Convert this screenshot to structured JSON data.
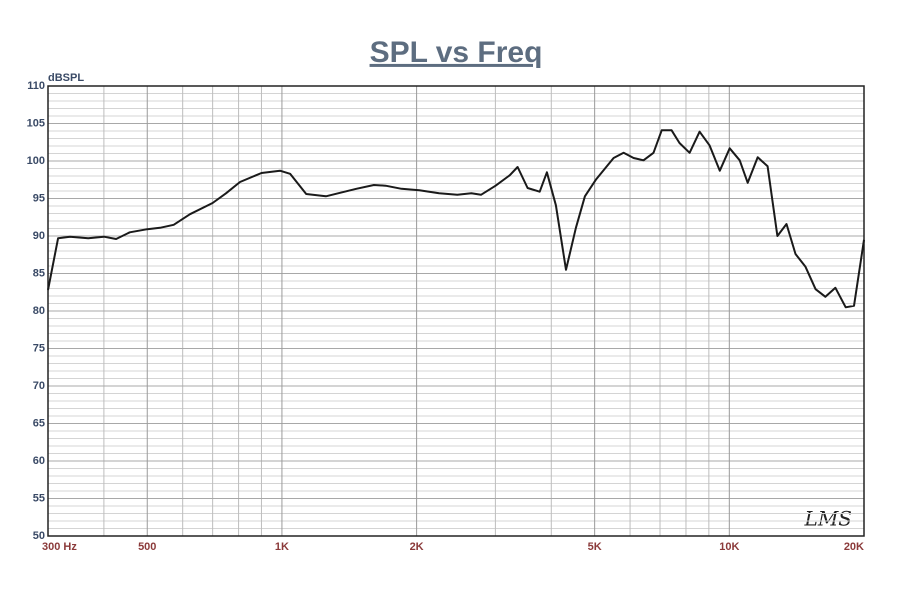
{
  "chart_data": {
    "type": "line",
    "title": "SPL vs Freq",
    "y_label": "dBSPL",
    "watermark": "LMS",
    "log_x": true,
    "grid": true,
    "xlim": [
      300,
      20000
    ],
    "ylim": [
      50,
      110
    ],
    "xticks": [
      {
        "value": 300,
        "label": "300  Hz"
      },
      500,
      {
        "value": 1000,
        "label": "1K"
      },
      {
        "value": 2000,
        "label": "2K"
      },
      {
        "value": 5000,
        "label": "5K"
      },
      {
        "value": 10000,
        "label": "10K"
      },
      {
        "value": 20000,
        "label": "20K"
      }
    ],
    "xminor": [
      400,
      600,
      700,
      800,
      900,
      3000,
      4000,
      6000,
      7000,
      8000,
      9000
    ],
    "yticks": [
      50,
      55,
      60,
      65,
      70,
      75,
      80,
      85,
      90,
      95,
      100,
      105,
      110
    ],
    "x": [
      300,
      316,
      336,
      369,
      400,
      426,
      457,
      500,
      534,
      573,
      623,
      700,
      750,
      806,
      900,
      990,
      1043,
      1133,
      1254,
      1466,
      1605,
      1705,
      1850,
      2028,
      2245,
      2466,
      2652,
      2786,
      3003,
      3230,
      3364,
      3540,
      3768,
      3911,
      4097,
      4314,
      4540,
      4755,
      5030,
      5513,
      5805,
      6110,
      6430,
      6770,
      7060,
      7430,
      7740,
      8150,
      8580,
      9030,
      9520,
      10020,
      10550,
      10990,
      11570,
      12180,
      12810,
      13420,
      14060,
      14800,
      15590,
      16400,
      17260,
      18200,
      19000,
      20000
    ],
    "series": [
      {
        "color": "#1a1a1a",
        "values": [
          82.8,
          89.7,
          89.9,
          89.7,
          89.9,
          89.6,
          90.5,
          90.9,
          91.1,
          91.5,
          92.9,
          94.4,
          95.7,
          97.2,
          98.4,
          98.7,
          98.3,
          95.6,
          95.3,
          96.3,
          96.8,
          96.7,
          96.3,
          96.1,
          95.7,
          95.5,
          95.7,
          95.5,
          96.7,
          98.1,
          99.2,
          96.4,
          95.9,
          98.5,
          94.1,
          85.5,
          91.1,
          95.3,
          97.5,
          100.4,
          101.1,
          100.4,
          100.1,
          101.1,
          104.1,
          104.1,
          102.4,
          101.1,
          103.9,
          102.1,
          98.7,
          101.7,
          100.1,
          97.1,
          100.5,
          99.3,
          90.0,
          91.6,
          87.6,
          85.9,
          82.9,
          81.9,
          83.1,
          80.5,
          80.7,
          89.5
        ]
      }
    ]
  }
}
